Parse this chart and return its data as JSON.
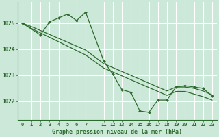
{
  "bg_color": "#cbe8d8",
  "grid_color": "#aaddbb",
  "line_color": "#2d6a2d",
  "marker_color": "#2d6a2d",
  "title": "Graphe pression niveau de la mer (hPa)",
  "ylabel_ticks": [
    1022,
    1023,
    1024,
    1025
  ],
  "ylim": [
    1021.3,
    1025.8
  ],
  "xtick_labels_left": [
    "0",
    "1",
    "2",
    "3",
    "4",
    "5",
    "6",
    "7"
  ],
  "xtick_labels_right": [
    "11",
    "12",
    "13",
    "14",
    "15",
    "16",
    "17",
    "18",
    "19",
    "20",
    "21",
    "22",
    "23"
  ],
  "line1_x": [
    0,
    1,
    2,
    3,
    4,
    5,
    6,
    7,
    11,
    12,
    13,
    14,
    15,
    16,
    17,
    18,
    19,
    20,
    21,
    22,
    23
  ],
  "line1_y": [
    1025.0,
    1024.87,
    1024.72,
    1024.57,
    1024.42,
    1024.27,
    1024.12,
    1023.97,
    1023.45,
    1023.3,
    1023.15,
    1023.0,
    1022.85,
    1022.7,
    1022.55,
    1022.4,
    1022.55,
    1022.55,
    1022.5,
    1022.4,
    1022.25
  ],
  "line2_x": [
    0,
    1,
    2,
    3,
    4,
    5,
    6,
    7,
    11,
    12,
    13,
    14,
    15,
    16,
    17,
    18,
    19,
    20,
    21,
    22,
    23
  ],
  "line2_y": [
    1025.0,
    1024.8,
    1024.63,
    1024.46,
    1024.29,
    1024.12,
    1023.95,
    1023.78,
    1023.28,
    1023.13,
    1022.98,
    1022.83,
    1022.68,
    1022.53,
    1022.38,
    1022.23,
    1022.38,
    1022.38,
    1022.28,
    1022.18,
    1022.05
  ],
  "line3_x": [
    0,
    2,
    3,
    4,
    5,
    6,
    7,
    11,
    12,
    13,
    14,
    15,
    16,
    17,
    18,
    19,
    20,
    21,
    22,
    23
  ],
  "line3_y": [
    1025.0,
    1024.55,
    1025.05,
    1025.2,
    1025.35,
    1025.1,
    1025.42,
    1023.55,
    1023.05,
    1022.45,
    1022.35,
    1021.63,
    1021.58,
    1022.05,
    1022.05,
    1022.55,
    1022.6,
    1022.55,
    1022.5,
    1022.2
  ]
}
